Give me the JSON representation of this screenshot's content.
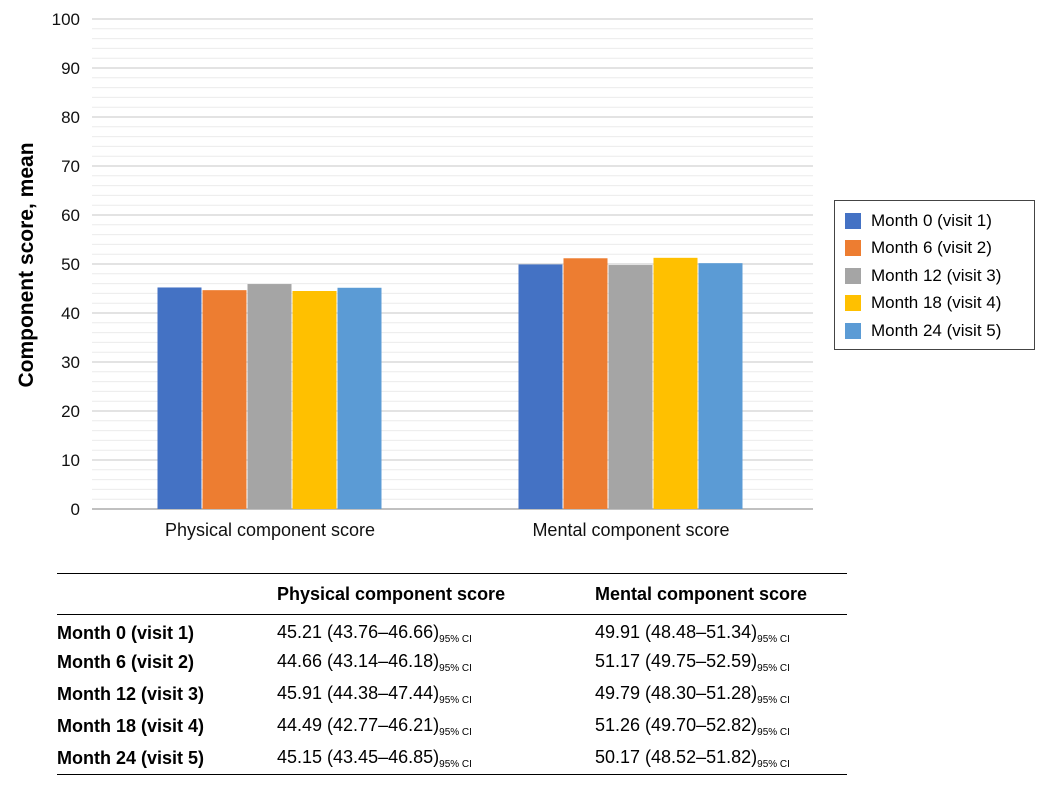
{
  "chart_data": {
    "type": "bar",
    "title": "",
    "xlabel": "",
    "ylabel": "Component score, mean",
    "ylim": [
      0,
      100
    ],
    "yticks": [
      0,
      10,
      20,
      30,
      40,
      50,
      60,
      70,
      80,
      90,
      100
    ],
    "minor_grid_step": 2,
    "categories": [
      "Physical component score",
      "Mental component score"
    ],
    "series": [
      {
        "name": "Month 0 (visit 1)",
        "color": "#4472c4",
        "values": [
          45.21,
          49.91
        ]
      },
      {
        "name": "Month 6 (visit 2)",
        "color": "#ed7d31",
        "values": [
          44.66,
          51.17
        ]
      },
      {
        "name": "Month 12 (visit 3)",
        "color": "#a5a5a5",
        "values": [
          45.91,
          49.79
        ]
      },
      {
        "name": "Month 18 (visit 4)",
        "color": "#ffc000",
        "values": [
          44.49,
          51.26
        ]
      },
      {
        "name": "Month 24 (visit 5)",
        "color": "#5b9bd5",
        "values": [
          45.15,
          50.17
        ]
      }
    ],
    "grid": true,
    "legend_position": "right"
  },
  "table": {
    "headers": [
      "",
      "Physical component score",
      "Mental component score"
    ],
    "ci_label": "95% CI",
    "rows": [
      {
        "label": "Month 0 (visit 1)",
        "physical": "45.21 (43.76–46.66)",
        "mental": "49.91 (48.48–51.34)"
      },
      {
        "label": "Month 6 (visit 2)",
        "physical": "44.66 (43.14–46.18)",
        "mental": "51.17 (49.75–52.59)"
      },
      {
        "label": "Month 12 (visit 3)",
        "physical": "45.91 (44.38–47.44)",
        "mental": "49.79 (48.30–51.28)"
      },
      {
        "label": "Month 18 (visit 4)",
        "physical": "44.49 (42.77–46.21)",
        "mental": "51.26 (49.70–52.82)"
      },
      {
        "label": "Month 24 (visit 5)",
        "physical": "45.15 (43.45–46.85)",
        "mental": "50.17 (48.52–51.82)"
      }
    ]
  }
}
